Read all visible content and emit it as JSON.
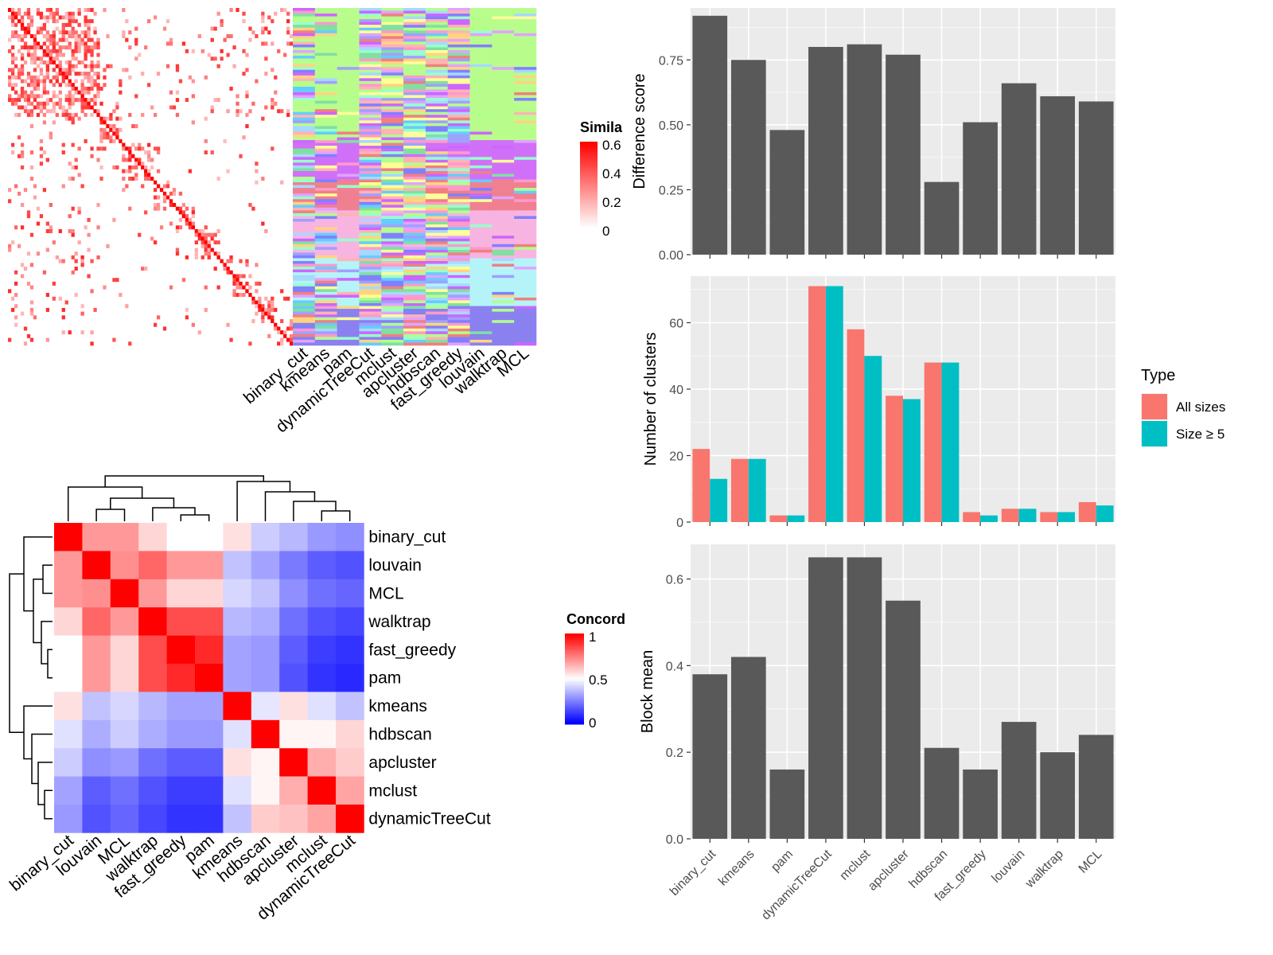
{
  "methods": [
    "binary_cut",
    "kmeans",
    "pam",
    "dynamicTreeCut",
    "mclust",
    "apcluster",
    "hdbscan",
    "fast_greedy",
    "louvain",
    "walktrap",
    "MCL"
  ],
  "chart_data": [
    {
      "type": "heatmap",
      "name": "similarity-heatmap",
      "legend_title": "Simila",
      "legend_ticks": [
        "0.6",
        "0.4",
        "0.2",
        "0"
      ],
      "colors": [
        "#ffffff",
        "#ff0000"
      ]
    },
    {
      "type": "heatmap",
      "name": "cluster-assignment-heatmap",
      "columns": [
        "binary_cut",
        "kmeans",
        "pam",
        "dynamicTreeCut",
        "mclust",
        "apcluster",
        "hdbscan",
        "fast_greedy",
        "louvain",
        "walktrap",
        "MCL"
      ]
    },
    {
      "type": "heatmap",
      "name": "concordance-heatmap",
      "legend_title": "Concord",
      "legend_ticks": [
        "1",
        "0.5",
        "0"
      ],
      "colors": [
        "#0000ff",
        "#ffffff",
        "#ff0000"
      ],
      "order": [
        "binary_cut",
        "louvain",
        "MCL",
        "walktrap",
        "fast_greedy",
        "pam",
        "kmeans",
        "hdbscan",
        "apcluster",
        "mclust",
        "dynamicTreeCut"
      ],
      "matrix": [
        [
          1.0,
          0.7,
          0.7,
          0.58,
          0.5,
          0.5,
          0.56,
          0.4,
          0.36,
          0.3,
          0.28
        ],
        [
          0.7,
          1.0,
          0.72,
          0.8,
          0.7,
          0.7,
          0.38,
          0.32,
          0.24,
          0.18,
          0.16
        ],
        [
          0.7,
          0.72,
          1.0,
          0.7,
          0.58,
          0.58,
          0.42,
          0.38,
          0.28,
          0.22,
          0.2
        ],
        [
          0.58,
          0.8,
          0.7,
          1.0,
          0.85,
          0.85,
          0.36,
          0.34,
          0.22,
          0.16,
          0.14
        ],
        [
          0.5,
          0.7,
          0.58,
          0.85,
          1.0,
          0.92,
          0.32,
          0.3,
          0.18,
          0.12,
          0.1
        ],
        [
          0.5,
          0.7,
          0.58,
          0.85,
          0.92,
          1.0,
          0.32,
          0.3,
          0.16,
          0.1,
          0.08
        ],
        [
          0.56,
          0.38,
          0.42,
          0.36,
          0.32,
          0.32,
          1.0,
          0.45,
          0.56,
          0.44,
          0.38
        ],
        [
          0.44,
          0.34,
          0.4,
          0.34,
          0.3,
          0.3,
          0.44,
          1.0,
          0.52,
          0.52,
          0.58
        ],
        [
          0.4,
          0.28,
          0.3,
          0.22,
          0.18,
          0.18,
          0.56,
          0.52,
          1.0,
          0.66,
          0.6
        ],
        [
          0.32,
          0.18,
          0.22,
          0.16,
          0.12,
          0.12,
          0.44,
          0.52,
          0.66,
          1.0,
          0.68
        ],
        [
          0.3,
          0.16,
          0.2,
          0.14,
          0.1,
          0.1,
          0.38,
          0.6,
          0.62,
          0.68,
          1.0
        ]
      ]
    },
    {
      "type": "bar",
      "name": "difference-score",
      "categories": [
        "binary_cut",
        "kmeans",
        "pam",
        "dynamicTreeCut",
        "mclust",
        "apcluster",
        "hdbscan",
        "fast_greedy",
        "louvain",
        "walktrap",
        "MCL"
      ],
      "values": [
        0.92,
        0.75,
        0.48,
        0.8,
        0.81,
        0.77,
        0.28,
        0.51,
        0.66,
        0.61,
        0.59
      ],
      "ylabel": "Difference score",
      "ylim": [
        0,
        0.95
      ],
      "yticks": [
        "0.00",
        "0.25",
        "0.50",
        "0.75"
      ]
    },
    {
      "type": "bar",
      "name": "number-of-clusters",
      "categories": [
        "binary_cut",
        "kmeans",
        "pam",
        "dynamicTreeCut",
        "mclust",
        "apcluster",
        "hdbscan",
        "fast_greedy",
        "louvain",
        "walktrap",
        "MCL"
      ],
      "series": [
        {
          "name": "All sizes",
          "color": "#f8766d",
          "values": [
            22,
            19,
            2,
            71,
            58,
            38,
            48,
            3,
            4,
            3,
            6
          ]
        },
        {
          "name": "Size ≥ 5",
          "color": "#00bfc4",
          "values": [
            13,
            19,
            2,
            71,
            50,
            37,
            48,
            2,
            4,
            3,
            5
          ]
        }
      ],
      "ylabel": "Number of clusters",
      "ylim": [
        0,
        74
      ],
      "yticks": [
        "0",
        "20",
        "40",
        "60"
      ],
      "legend_title": "Type",
      "legend_placement": "right"
    },
    {
      "type": "bar",
      "name": "block-mean",
      "categories": [
        "binary_cut",
        "kmeans",
        "pam",
        "dynamicTreeCut",
        "mclust",
        "apcluster",
        "hdbscan",
        "fast_greedy",
        "louvain",
        "walktrap",
        "MCL"
      ],
      "values": [
        0.38,
        0.42,
        0.16,
        0.65,
        0.65,
        0.55,
        0.21,
        0.16,
        0.27,
        0.2,
        0.24
      ],
      "ylabel": "Block mean",
      "ylim": [
        0,
        0.68
      ],
      "yticks": [
        "0.0",
        "0.2",
        "0.4",
        "0.6"
      ]
    }
  ]
}
